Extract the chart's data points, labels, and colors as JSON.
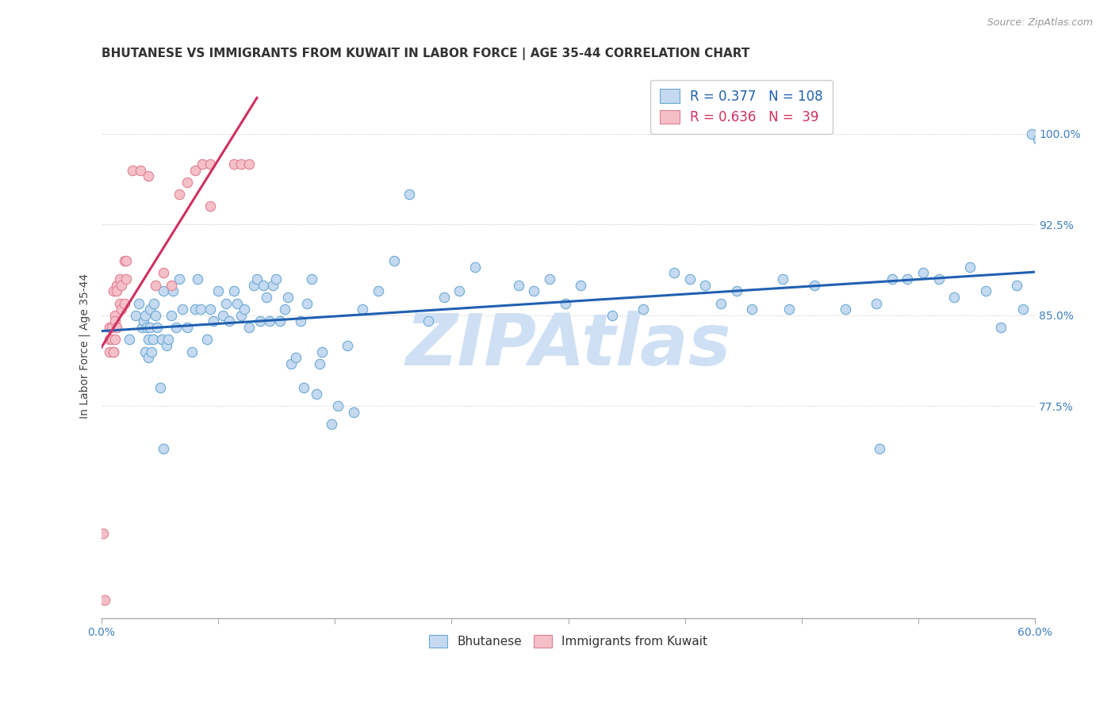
{
  "title": "BHUTANESE VS IMMIGRANTS FROM KUWAIT IN LABOR FORCE | AGE 35-44 CORRELATION CHART",
  "source": "Source: ZipAtlas.com",
  "ylabel": "In Labor Force | Age 35-44",
  "xlim": [
    0.0,
    0.6
  ],
  "ylim": [
    0.6,
    1.05
  ],
  "xticks": [
    0.0,
    0.075,
    0.15,
    0.225,
    0.3,
    0.375,
    0.45,
    0.525,
    0.6
  ],
  "xtick_labels": [
    "0.0%",
    "",
    "",
    "",
    "",
    "",
    "",
    "",
    "60.0%"
  ],
  "ytick_positions": [
    0.775,
    0.85,
    0.925,
    1.0
  ],
  "ytick_labels": [
    "77.5%",
    "85.0%",
    "92.5%",
    "100.0%"
  ],
  "R_blue": 0.377,
  "N_blue": 108,
  "R_pink": 0.636,
  "N_pink": 39,
  "blue_scatter_face": "#c5d9f0",
  "blue_scatter_edge": "#6aaad4",
  "pink_scatter_face": "#f5bfc8",
  "pink_scatter_edge": "#e08090",
  "blue_line_color": "#2060b0",
  "pink_line_color": "#d03060",
  "tick_color": "#4080c0",
  "watermark": "ZIPAtlas",
  "watermark_color": "#cfe0f5",
  "blue_points_x": [
    0.018,
    0.022,
    0.024,
    0.026,
    0.027,
    0.028,
    0.028,
    0.029,
    0.03,
    0.03,
    0.031,
    0.031,
    0.032,
    0.033,
    0.034,
    0.035,
    0.036,
    0.038,
    0.039,
    0.04,
    0.042,
    0.043,
    0.045,
    0.046,
    0.048,
    0.05,
    0.052,
    0.055,
    0.058,
    0.06,
    0.062,
    0.064,
    0.068,
    0.07,
    0.072,
    0.075,
    0.078,
    0.08,
    0.082,
    0.085,
    0.087,
    0.09,
    0.092,
    0.095,
    0.098,
    0.1,
    0.102,
    0.104,
    0.106,
    0.108,
    0.11,
    0.112,
    0.115,
    0.118,
    0.12,
    0.122,
    0.125,
    0.128,
    0.13,
    0.132,
    0.135,
    0.138,
    0.14,
    0.142,
    0.148,
    0.152,
    0.158,
    0.162,
    0.168,
    0.178,
    0.188,
    0.198,
    0.21,
    0.22,
    0.23,
    0.24,
    0.268,
    0.278,
    0.288,
    0.298,
    0.308,
    0.328,
    0.348,
    0.368,
    0.378,
    0.388,
    0.398,
    0.408,
    0.418,
    0.438,
    0.442,
    0.458,
    0.478,
    0.498,
    0.508,
    0.518,
    0.528,
    0.538,
    0.548,
    0.558,
    0.568,
    0.578,
    0.588,
    0.592,
    0.598,
    0.602,
    0.04,
    0.5
  ],
  "blue_points_y": [
    0.83,
    0.85,
    0.86,
    0.84,
    0.845,
    0.82,
    0.85,
    0.84,
    0.815,
    0.83,
    0.855,
    0.84,
    0.82,
    0.83,
    0.86,
    0.85,
    0.84,
    0.79,
    0.83,
    0.87,
    0.825,
    0.83,
    0.85,
    0.87,
    0.84,
    0.88,
    0.855,
    0.84,
    0.82,
    0.855,
    0.88,
    0.855,
    0.83,
    0.855,
    0.845,
    0.87,
    0.85,
    0.86,
    0.845,
    0.87,
    0.86,
    0.85,
    0.855,
    0.84,
    0.875,
    0.88,
    0.845,
    0.875,
    0.865,
    0.845,
    0.875,
    0.88,
    0.845,
    0.855,
    0.865,
    0.81,
    0.815,
    0.845,
    0.79,
    0.86,
    0.88,
    0.785,
    0.81,
    0.82,
    0.76,
    0.775,
    0.825,
    0.77,
    0.855,
    0.87,
    0.895,
    0.95,
    0.845,
    0.865,
    0.87,
    0.89,
    0.875,
    0.87,
    0.88,
    0.86,
    0.875,
    0.85,
    0.855,
    0.885,
    0.88,
    0.875,
    0.86,
    0.87,
    0.855,
    0.88,
    0.855,
    0.875,
    0.855,
    0.86,
    0.88,
    0.88,
    0.885,
    0.88,
    0.865,
    0.89,
    0.87,
    0.84,
    0.875,
    0.855,
    1.0,
    0.995,
    0.74,
    0.74
  ],
  "pink_points_x": [
    0.001,
    0.002,
    0.005,
    0.005,
    0.005,
    0.007,
    0.007,
    0.008,
    0.008,
    0.008,
    0.009,
    0.009,
    0.009,
    0.01,
    0.01,
    0.01,
    0.012,
    0.012,
    0.013,
    0.013,
    0.015,
    0.015,
    0.016,
    0.016,
    0.02,
    0.025,
    0.03,
    0.035,
    0.04,
    0.045,
    0.05,
    0.055,
    0.06,
    0.065,
    0.07,
    0.07,
    0.085,
    0.09,
    0.095
  ],
  "pink_points_y": [
    0.67,
    0.615,
    0.82,
    0.83,
    0.84,
    0.83,
    0.84,
    0.82,
    0.82,
    0.87,
    0.85,
    0.83,
    0.845,
    0.84,
    0.875,
    0.87,
    0.86,
    0.88,
    0.855,
    0.875,
    0.86,
    0.895,
    0.895,
    0.88,
    0.97,
    0.97,
    0.965,
    0.875,
    0.885,
    0.875,
    0.95,
    0.96,
    0.97,
    0.975,
    0.975,
    0.94,
    0.975,
    0.975,
    0.975
  ]
}
